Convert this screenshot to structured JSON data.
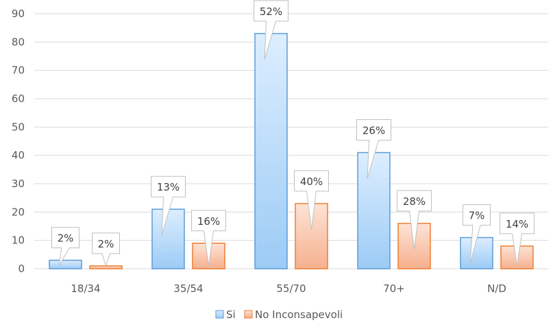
{
  "chart_data": {
    "type": "bar",
    "categories": [
      "18/34",
      "35/54",
      "55/70",
      "70+",
      "N/D"
    ],
    "series": [
      {
        "name": "Si",
        "values": [
          3,
          21,
          83,
          41,
          11
        ],
        "labels": [
          "2%",
          "13%",
          "52%",
          "26%",
          "7%"
        ]
      },
      {
        "name": "No Inconsapevoli",
        "values": [
          1,
          9,
          23,
          16,
          8
        ],
        "labels": [
          "2%",
          "16%",
          "40%",
          "28%",
          "14%"
        ]
      }
    ],
    "ylim": [
      0,
      90
    ],
    "yticks": [
      0,
      10,
      20,
      30,
      40,
      50,
      60,
      70,
      80,
      90
    ],
    "grid": true,
    "legend": "bottom",
    "colors": {
      "si_fill_top": "#ddeeff",
      "si_fill_bottom": "#9ccbf5",
      "si_border": "#5b9bd5",
      "no_fill_top": "#fde3d6",
      "no_fill_bottom": "#f6b08e",
      "no_border": "#ed7d31",
      "grid": "#d9d9d9",
      "callout_border": "#bfbfbf"
    }
  }
}
